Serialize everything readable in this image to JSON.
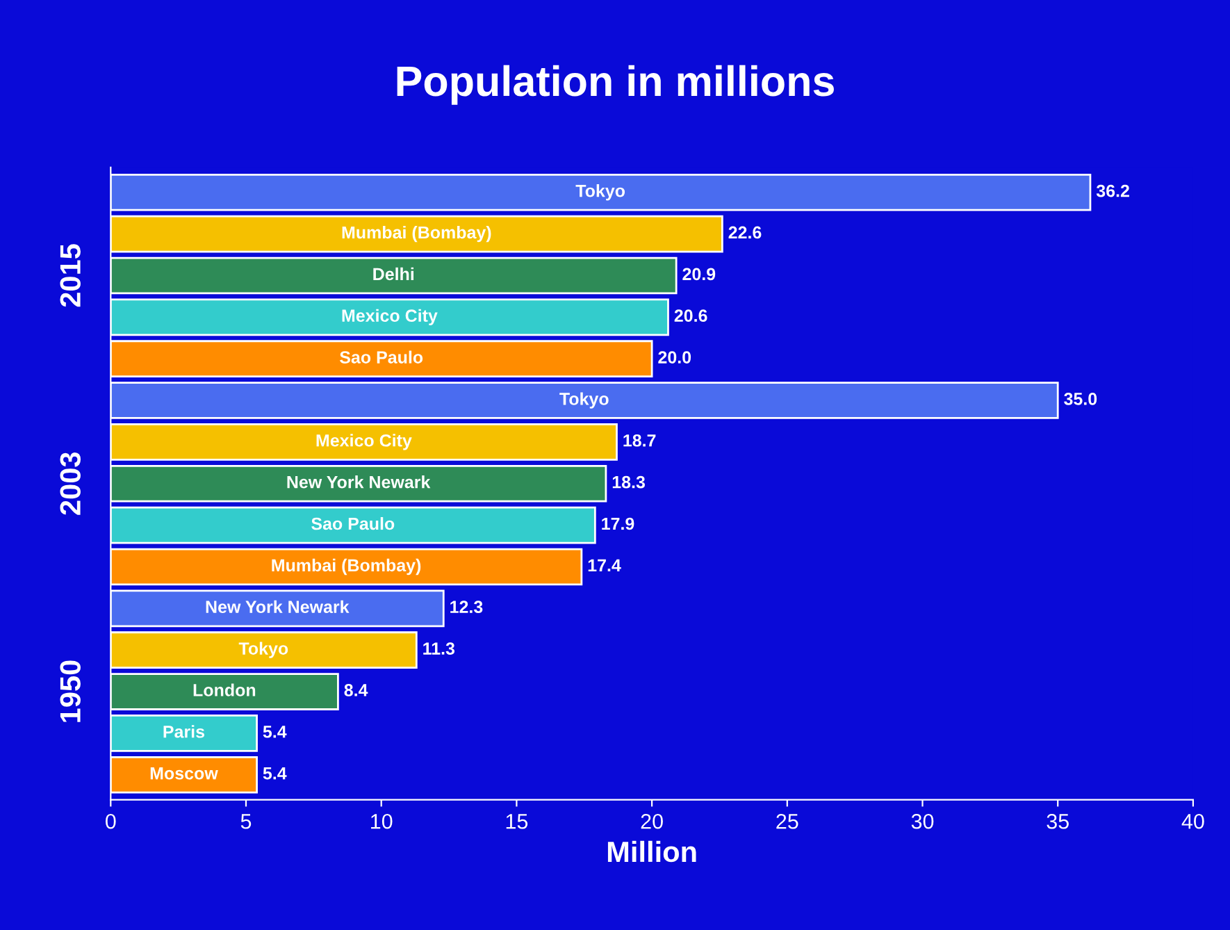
{
  "chart_data": {
    "type": "bar",
    "orientation": "horizontal",
    "title": "Population in millions",
    "xlabel": "Million",
    "categories": [
      "Tokyo",
      "Mumbai (Bombay)",
      "Delhi",
      "Mexico City",
      "Sao Paulo",
      "Tokyo",
      "Mexico City",
      "New York Newark",
      "Sao Paulo",
      "Mumbai (Bombay)",
      "New York Newark",
      "Tokyo",
      "London",
      "Paris",
      "Moscow"
    ],
    "values": [
      36.2,
      22.6,
      20.9,
      20.6,
      20.0,
      35.0,
      18.7,
      18.3,
      17.9,
      17.4,
      12.3,
      11.3,
      8.4,
      5.4,
      5.4
    ],
    "value_labels": [
      "36.2",
      "22.6",
      "20.9",
      "20.6",
      "20.0",
      "35.0",
      "18.7",
      "18.3",
      "17.9",
      "17.4",
      "12.3",
      "11.3",
      "8.4",
      "5.4",
      "5.4"
    ],
    "colors": [
      "#4a6cf0",
      "#f5c000",
      "#2e8b57",
      "#33cccc",
      "#ff8c00",
      "#4a6cf0",
      "#f5c000",
      "#2e8b57",
      "#33cccc",
      "#ff8c00",
      "#4a6cf0",
      "#f5c000",
      "#2e8b57",
      "#33cccc",
      "#ff8c00"
    ],
    "annotations": [
      "2015",
      "2003",
      "1950"
    ],
    "xlim": [
      0,
      40
    ],
    "xticks": [
      0,
      5,
      10,
      15,
      20,
      25,
      30,
      35,
      40
    ],
    "grid": false
  }
}
